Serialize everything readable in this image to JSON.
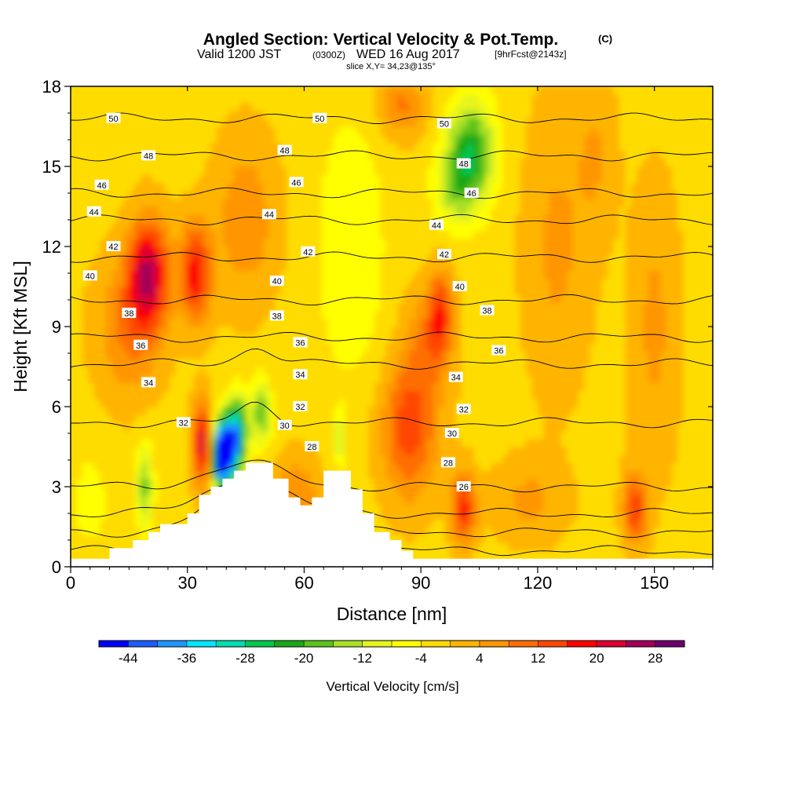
{
  "header": {
    "title": "Angled Section: Vertical Velocity & Pot.Temp.",
    "title_mark": "(C)",
    "valid_prefix": "Valid 1200 JST",
    "valid_utc": "(0300Z)",
    "valid_date": "WED 16 Aug 2017",
    "forecast": "[9hrFcst@2143z]",
    "slice": "slice X,Y= 34,23@135°"
  },
  "chart_data": {
    "type": "heatmap",
    "xlabel": "Distance [nm]",
    "ylabel": "Height [Kft MSL]",
    "xlim": [
      0,
      165
    ],
    "ylim": [
      0,
      18
    ],
    "x_ticks": [
      0,
      30,
      60,
      90,
      120,
      150
    ],
    "y_ticks": [
      0,
      3,
      6,
      9,
      12,
      15,
      18
    ],
    "colorbar": {
      "label": "Vertical Velocity [cm/s]",
      "tick_labels": [
        "-44",
        "-36",
        "-28",
        "-20",
        "-12",
        "-4",
        "4",
        "12",
        "20",
        "28"
      ],
      "boundaries": [
        -48,
        -44,
        -40,
        -36,
        -32,
        -28,
        -24,
        -20,
        -16,
        -12,
        -8,
        -4,
        0,
        4,
        8,
        12,
        16,
        20,
        24,
        28,
        32
      ],
      "colors": [
        "#0000ff",
        "#1e5cff",
        "#1e96ff",
        "#00e6ff",
        "#00ddb0",
        "#00c850",
        "#18a818",
        "#5cc21c",
        "#a8e028",
        "#e6f41e",
        "#ffff00",
        "#ffdc00",
        "#ffb400",
        "#ff9600",
        "#ff6e00",
        "#ff4600",
        "#ff0000",
        "#dc0032",
        "#a0005a",
        "#6e006e"
      ]
    },
    "terrain": [
      [
        0,
        0.3
      ],
      [
        10,
        0.3
      ],
      [
        10,
        0.7
      ],
      [
        16,
        0.7
      ],
      [
        16,
        1.0
      ],
      [
        20,
        1.0
      ],
      [
        20,
        1.3
      ],
      [
        23,
        1.3
      ],
      [
        23,
        1.6
      ],
      [
        30,
        1.6
      ],
      [
        30,
        2.0
      ],
      [
        33,
        2.0
      ],
      [
        33,
        2.7
      ],
      [
        36,
        2.7
      ],
      [
        36,
        3.0
      ],
      [
        39,
        3.0
      ],
      [
        39,
        3.3
      ],
      [
        42,
        3.3
      ],
      [
        42,
        3.6
      ],
      [
        45,
        3.6
      ],
      [
        45,
        3.9
      ],
      [
        52,
        3.9
      ],
      [
        52,
        3.3
      ],
      [
        56,
        3.3
      ],
      [
        56,
        2.6
      ],
      [
        59,
        2.6
      ],
      [
        59,
        2.3
      ],
      [
        62,
        2.3
      ],
      [
        62,
        2.6
      ],
      [
        65,
        2.6
      ],
      [
        65,
        3.6
      ],
      [
        72,
        3.6
      ],
      [
        72,
        2.9
      ],
      [
        75,
        2.9
      ],
      [
        75,
        2.0
      ],
      [
        78,
        2.0
      ],
      [
        78,
        1.3
      ],
      [
        82,
        1.3
      ],
      [
        82,
        1.0
      ],
      [
        85,
        1.0
      ],
      [
        85,
        0.6
      ],
      [
        88,
        0.6
      ],
      [
        88,
        0.3
      ],
      [
        165,
        0.3
      ]
    ],
    "wind_cells": [
      {
        "x": 20,
        "z": 11,
        "w": 24,
        "sx": 5,
        "sz": 2.0
      },
      {
        "x": 32,
        "z": 11,
        "w": 19,
        "sx": 4,
        "sz": 1.8
      },
      {
        "x": 15,
        "z": 9,
        "w": 10,
        "sx": 8,
        "sz": 2.5
      },
      {
        "x": 45,
        "z": 13,
        "w": 8,
        "sx": 8,
        "sz": 3
      },
      {
        "x": 34,
        "z": 4.6,
        "w": 24,
        "sx": 2.5,
        "sz": 1.5
      },
      {
        "x": 40,
        "z": 4.3,
        "w": -40,
        "sx": 2.5,
        "sz": 1.3
      },
      {
        "x": 43,
        "z": 5.0,
        "w": -30,
        "sx": 2.5,
        "sz": 1.4
      },
      {
        "x": 38,
        "z": 4.2,
        "w": -30,
        "sx": 2.2,
        "sz": 1.2
      },
      {
        "x": 49,
        "z": 5.8,
        "w": -18,
        "sx": 2.5,
        "sz": 1.2
      },
      {
        "x": 19,
        "z": 3.0,
        "w": -16,
        "sx": 2.2,
        "sz": 1.6
      },
      {
        "x": 69,
        "z": 4.8,
        "w": -12,
        "sx": 1.3,
        "sz": 1.0
      },
      {
        "x": 87,
        "z": 5.2,
        "w": 16,
        "sx": 7,
        "sz": 2.5
      },
      {
        "x": 92,
        "z": 8.5,
        "w": 8,
        "sx": 6,
        "sz": 2.0
      },
      {
        "x": 95,
        "z": 9.5,
        "w": 14,
        "sx": 3,
        "sz": 1.6
      },
      {
        "x": 101,
        "z": 2.2,
        "w": 18,
        "sx": 3,
        "sz": 1.3
      },
      {
        "x": 145,
        "z": 2.2,
        "w": 16,
        "sx": 3,
        "sz": 1.3
      },
      {
        "x": 103,
        "z": 15.5,
        "w": -22,
        "sx": 6,
        "sz": 2.0
      },
      {
        "x": 98,
        "z": 14.2,
        "w": -10,
        "sx": 5,
        "sz": 1.5
      },
      {
        "x": 85,
        "z": 17.3,
        "w": 10,
        "sx": 6,
        "sz": 1.2
      },
      {
        "x": 72,
        "z": 12,
        "w": -7,
        "sx": 9,
        "sz": 5
      },
      {
        "x": 125,
        "z": 12,
        "w": 6,
        "sx": 8,
        "sz": 5
      },
      {
        "x": 58,
        "z": 2.8,
        "w": 9,
        "sx": 6,
        "sz": 1.3
      },
      {
        "x": 118,
        "z": 2.5,
        "w": 6,
        "sx": 9,
        "sz": 1.5
      },
      {
        "x": 5,
        "z": 2.5,
        "w": -5,
        "sx": 5,
        "sz": 2
      },
      {
        "x": 150,
        "z": 9,
        "w": 6,
        "sx": 6,
        "sz": 5
      },
      {
        "x": 135,
        "z": 15.5,
        "w": 5,
        "sx": 5,
        "sz": 3
      }
    ],
    "theta_contours": [
      {
        "v": 26,
        "z0": 0.6
      },
      {
        "v": 28,
        "z0": 1.3
      },
      {
        "v": 30,
        "z0": 2.0
      },
      {
        "v": 32,
        "z0": 3.0
      },
      {
        "v": 34,
        "z0": 5.4
      },
      {
        "v": 36,
        "z0": 7.6
      },
      {
        "v": 38,
        "z0": 8.6
      },
      {
        "v": 40,
        "z0": 10.0
      },
      {
        "v": 42,
        "z0": 11.6
      },
      {
        "v": 44,
        "z0": 13.0
      },
      {
        "v": 46,
        "z0": 14.0
      },
      {
        "v": 48,
        "z0": 15.4
      },
      {
        "v": 50,
        "z0": 16.8
      }
    ],
    "contour_labels": [
      {
        "x": 11,
        "z": 16.8,
        "v": "50"
      },
      {
        "x": 64,
        "z": 16.8,
        "v": "50"
      },
      {
        "x": 96,
        "z": 16.6,
        "v": "50"
      },
      {
        "x": 20,
        "z": 15.4,
        "v": "48"
      },
      {
        "x": 55,
        "z": 15.6,
        "v": "48"
      },
      {
        "x": 101,
        "z": 15.1,
        "v": "48"
      },
      {
        "x": 8,
        "z": 14.3,
        "v": "46"
      },
      {
        "x": 58,
        "z": 14.4,
        "v": "46"
      },
      {
        "x": 103,
        "z": 14.0,
        "v": "46"
      },
      {
        "x": 6,
        "z": 13.3,
        "v": "44"
      },
      {
        "x": 51,
        "z": 13.2,
        "v": "44"
      },
      {
        "x": 94,
        "z": 12.8,
        "v": "44"
      },
      {
        "x": 11,
        "z": 12.0,
        "v": "42"
      },
      {
        "x": 61,
        "z": 11.8,
        "v": "42"
      },
      {
        "x": 96,
        "z": 11.7,
        "v": "42"
      },
      {
        "x": 5,
        "z": 10.9,
        "v": "40"
      },
      {
        "x": 53,
        "z": 10.7,
        "v": "40"
      },
      {
        "x": 100,
        "z": 10.5,
        "v": "40"
      },
      {
        "x": 15,
        "z": 9.5,
        "v": "38"
      },
      {
        "x": 53,
        "z": 9.4,
        "v": "38"
      },
      {
        "x": 107,
        "z": 9.6,
        "v": "38"
      },
      {
        "x": 18,
        "z": 8.3,
        "v": "36"
      },
      {
        "x": 59,
        "z": 8.4,
        "v": "36"
      },
      {
        "x": 110,
        "z": 8.1,
        "v": "36"
      },
      {
        "x": 20,
        "z": 6.9,
        "v": "34"
      },
      {
        "x": 59,
        "z": 7.2,
        "v": "34"
      },
      {
        "x": 99,
        "z": 7.1,
        "v": "34"
      },
      {
        "x": 29,
        "z": 5.4,
        "v": "32"
      },
      {
        "x": 59,
        "z": 6.0,
        "v": "32"
      },
      {
        "x": 101,
        "z": 5.9,
        "v": "32"
      },
      {
        "x": 55,
        "z": 5.3,
        "v": "30"
      },
      {
        "x": 98,
        "z": 5.0,
        "v": "30"
      },
      {
        "x": 62,
        "z": 4.5,
        "v": "28"
      },
      {
        "x": 97,
        "z": 3.9,
        "v": "28"
      },
      {
        "x": 101,
        "z": 3.0,
        "v": "26"
      }
    ]
  }
}
